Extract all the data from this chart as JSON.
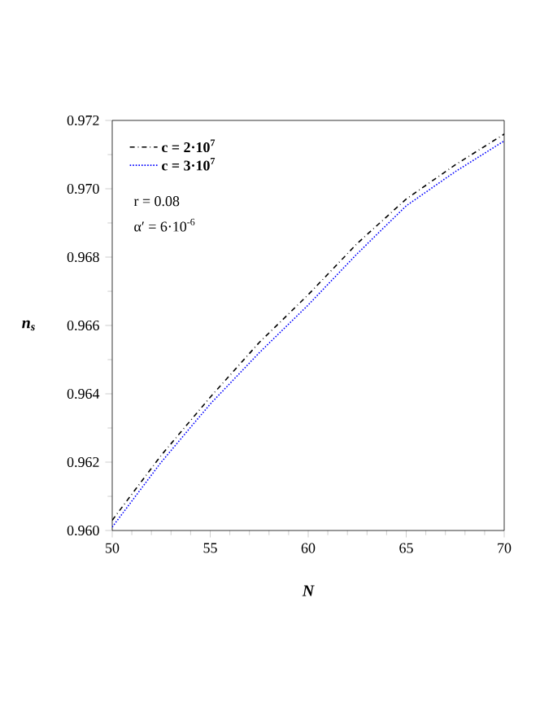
{
  "chart_data": {
    "type": "line",
    "xlabel": "N",
    "ylabel": "n$_{s}$",
    "x": [
      50,
      52.5,
      55,
      57.5,
      60,
      62.5,
      65,
      67.5,
      70
    ],
    "series": [
      {
        "name": "c = 2·10$^{7}$",
        "color": "#000000",
        "line_style": "dashdot",
        "values": [
          0.9603,
          0.9622,
          0.9639,
          0.9655,
          0.9669,
          0.9684,
          0.9697,
          0.9707,
          0.9716
        ]
      },
      {
        "name": "c = 3·10$^{7}$",
        "color": "#0000ff",
        "line_style": "dotted",
        "values": [
          0.9601,
          0.962,
          0.9637,
          0.9652,
          0.9666,
          0.9681,
          0.9695,
          0.9705,
          0.9714
        ]
      }
    ],
    "annotations": [
      "r = 0.08",
      "α′ = 6·10$^{-6}$"
    ],
    "xlim": [
      50,
      70
    ],
    "ylim": [
      0.96,
      0.972
    ],
    "xticks": [
      50,
      55,
      60,
      65,
      70
    ],
    "yticks": [
      {
        "value": 0.96,
        "label": "0.960"
      },
      {
        "value": 0.962,
        "label": "0.962"
      },
      {
        "value": 0.964,
        "label": "0.964"
      },
      {
        "value": 0.966,
        "label": "0.966"
      },
      {
        "value": 0.968,
        "label": "0.968"
      },
      {
        "value": 0.97,
        "label": "0.970"
      },
      {
        "value": 0.972,
        "label": "0.972"
      }
    ],
    "legend": "top left",
    "grid": false,
    "marker": "none"
  }
}
